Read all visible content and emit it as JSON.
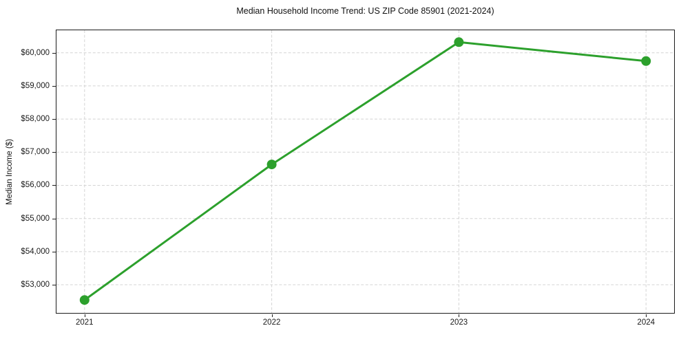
{
  "chart_data": {
    "type": "line",
    "title": "Median Household Income Trend: US ZIP Code 85901 (2021-2024)",
    "xlabel": "",
    "ylabel": "Median Income ($)",
    "x": [
      2021,
      2022,
      2023,
      2024
    ],
    "xtick_labels": [
      "2021",
      "2022",
      "2023",
      "2024"
    ],
    "values": [
      52540,
      56630,
      60320,
      59750
    ],
    "ytick_values": [
      53000,
      54000,
      55000,
      56000,
      57000,
      58000,
      59000,
      60000
    ],
    "ytick_labels": [
      "$53,000",
      "$54,000",
      "$55,000",
      "$56,000",
      "$57,000",
      "$58,000",
      "$59,000",
      "$60,000"
    ],
    "xlim": [
      2020.85,
      2024.15
    ],
    "ylim": [
      52150,
      60680
    ],
    "grid": true,
    "legend_position": "none",
    "line_color": "#2ca02c",
    "marker": "circle",
    "marker_color": "#2ca02c",
    "marker_radius": 7,
    "line_width": 3,
    "gridline_color": "#d4d4d4",
    "axis_color": "#1a1a1a",
    "background_color": "#ffffff"
  }
}
